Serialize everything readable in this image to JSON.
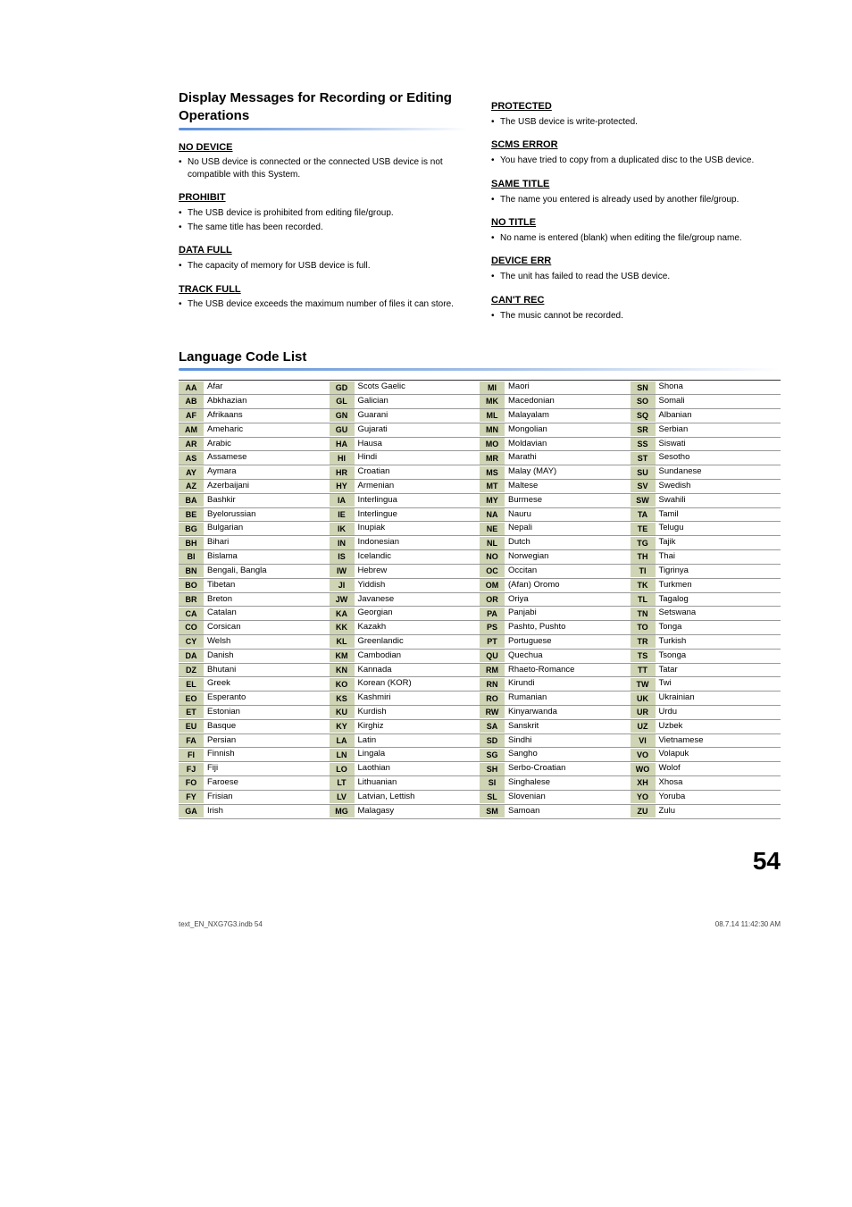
{
  "heading_left": "Display Messages for Recording or Editing Operations",
  "left_sections": [
    {
      "title": "NO DEVICE",
      "items": [
        "No USB device is connected or the connected USB device is not compatible with this System."
      ]
    },
    {
      "title": "PROHIBIT",
      "items": [
        "The USB device is prohibited from editing file/group.",
        "The same title has been recorded."
      ]
    },
    {
      "title": "DATA FULL",
      "items": [
        "The capacity of memory for USB device is full."
      ]
    },
    {
      "title": "TRACK FULL",
      "items": [
        "The USB device exceeds the maximum number of files it can store."
      ]
    }
  ],
  "right_sections": [
    {
      "title": "PROTECTED",
      "items": [
        "The USB device is write-protected."
      ]
    },
    {
      "title": "SCMS ERROR",
      "items": [
        "You have tried to copy from a duplicated disc to the USB device."
      ]
    },
    {
      "title": "SAME TITLE",
      "items": [
        "The name you entered is already used by another file/group."
      ]
    },
    {
      "title": "NO TITLE",
      "items": [
        "No name is entered (blank) when editing the file/group name."
      ]
    },
    {
      "title": "DEVICE ERR",
      "items": [
        "The unit has failed to read the USB device."
      ]
    },
    {
      "title": "CAN'T REC",
      "items": [
        "The music cannot be recorded."
      ]
    }
  ],
  "lang_heading": "Language Code List",
  "lang_header_bg": "#cfd4b4",
  "lang_border": "#999999",
  "underline_gradient_from": "#5a8fd8",
  "lang_columns": [
    [
      [
        "AA",
        "Afar"
      ],
      [
        "AB",
        "Abkhazian"
      ],
      [
        "AF",
        "Afrikaans"
      ],
      [
        "AM",
        "Ameharic"
      ],
      [
        "AR",
        "Arabic"
      ],
      [
        "AS",
        "Assamese"
      ],
      [
        "AY",
        "Aymara"
      ],
      [
        "AZ",
        "Azerbaijani"
      ],
      [
        "BA",
        "Bashkir"
      ],
      [
        "BE",
        "Byelorussian"
      ],
      [
        "BG",
        "Bulgarian"
      ],
      [
        "BH",
        "Bihari"
      ],
      [
        "BI",
        "Bislama"
      ],
      [
        "BN",
        "Bengali, Bangla"
      ],
      [
        "BO",
        "Tibetan"
      ],
      [
        "BR",
        "Breton"
      ],
      [
        "CA",
        "Catalan"
      ],
      [
        "CO",
        "Corsican"
      ],
      [
        "CY",
        "Welsh"
      ],
      [
        "DA",
        "Danish"
      ],
      [
        "DZ",
        "Bhutani"
      ],
      [
        "EL",
        "Greek"
      ],
      [
        "EO",
        "Esperanto"
      ],
      [
        "ET",
        "Estonian"
      ],
      [
        "EU",
        "Basque"
      ],
      [
        "FA",
        "Persian"
      ],
      [
        "FI",
        "Finnish"
      ],
      [
        "FJ",
        "Fiji"
      ],
      [
        "FO",
        "Faroese"
      ],
      [
        "FY",
        "Frisian"
      ],
      [
        "GA",
        "Irish"
      ]
    ],
    [
      [
        "GD",
        "Scots Gaelic"
      ],
      [
        "GL",
        "Galician"
      ],
      [
        "GN",
        "Guarani"
      ],
      [
        "GU",
        "Gujarati"
      ],
      [
        "HA",
        "Hausa"
      ],
      [
        "HI",
        "Hindi"
      ],
      [
        "HR",
        "Croatian"
      ],
      [
        "HY",
        "Armenian"
      ],
      [
        "IA",
        "Interlingua"
      ],
      [
        "IE",
        "Interlingue"
      ],
      [
        "IK",
        "Inupiak"
      ],
      [
        "IN",
        "Indonesian"
      ],
      [
        "IS",
        "Icelandic"
      ],
      [
        "IW",
        "Hebrew"
      ],
      [
        "JI",
        "Yiddish"
      ],
      [
        "JW",
        "Javanese"
      ],
      [
        "KA",
        "Georgian"
      ],
      [
        "KK",
        "Kazakh"
      ],
      [
        "KL",
        "Greenlandic"
      ],
      [
        "KM",
        "Cambodian"
      ],
      [
        "KN",
        "Kannada"
      ],
      [
        "KO",
        "Korean (KOR)"
      ],
      [
        "KS",
        "Kashmiri"
      ],
      [
        "KU",
        "Kurdish"
      ],
      [
        "KY",
        "Kirghiz"
      ],
      [
        "LA",
        "Latin"
      ],
      [
        "LN",
        "Lingala"
      ],
      [
        "LO",
        "Laothian"
      ],
      [
        "LT",
        "Lithuanian"
      ],
      [
        "LV",
        "Latvian, Lettish"
      ],
      [
        "MG",
        "Malagasy"
      ]
    ],
    [
      [
        "MI",
        "Maori"
      ],
      [
        "MK",
        "Macedonian"
      ],
      [
        "ML",
        "Malayalam"
      ],
      [
        "MN",
        "Mongolian"
      ],
      [
        "MO",
        "Moldavian"
      ],
      [
        "MR",
        "Marathi"
      ],
      [
        "MS",
        "Malay (MAY)"
      ],
      [
        "MT",
        "Maltese"
      ],
      [
        "MY",
        "Burmese"
      ],
      [
        "NA",
        "Nauru"
      ],
      [
        "NE",
        "Nepali"
      ],
      [
        "NL",
        "Dutch"
      ],
      [
        "NO",
        "Norwegian"
      ],
      [
        "OC",
        "Occitan"
      ],
      [
        "OM",
        "(Afan) Oromo"
      ],
      [
        "OR",
        "Oriya"
      ],
      [
        "PA",
        "Panjabi"
      ],
      [
        "PS",
        "Pashto, Pushto"
      ],
      [
        "PT",
        "Portuguese"
      ],
      [
        "QU",
        "Quechua"
      ],
      [
        "RM",
        "Rhaeto-Romance"
      ],
      [
        "RN",
        "Kirundi"
      ],
      [
        "RO",
        "Rumanian"
      ],
      [
        "RW",
        "Kinyarwanda"
      ],
      [
        "SA",
        "Sanskrit"
      ],
      [
        "SD",
        "Sindhi"
      ],
      [
        "SG",
        "Sangho"
      ],
      [
        "SH",
        "Serbo-Croatian"
      ],
      [
        "SI",
        "Singhalese"
      ],
      [
        "SL",
        "Slovenian"
      ],
      [
        "SM",
        "Samoan"
      ]
    ],
    [
      [
        "SN",
        "Shona"
      ],
      [
        "SO",
        "Somali"
      ],
      [
        "SQ",
        "Albanian"
      ],
      [
        "SR",
        "Serbian"
      ],
      [
        "SS",
        "Siswati"
      ],
      [
        "ST",
        "Sesotho"
      ],
      [
        "SU",
        "Sundanese"
      ],
      [
        "SV",
        "Swedish"
      ],
      [
        "SW",
        "Swahili"
      ],
      [
        "TA",
        "Tamil"
      ],
      [
        "TE",
        "Telugu"
      ],
      [
        "TG",
        "Tajik"
      ],
      [
        "TH",
        "Thai"
      ],
      [
        "TI",
        "Tigrinya"
      ],
      [
        "TK",
        "Turkmen"
      ],
      [
        "TL",
        "Tagalog"
      ],
      [
        "TN",
        "Setswana"
      ],
      [
        "TO",
        "Tonga"
      ],
      [
        "TR",
        "Turkish"
      ],
      [
        "TS",
        "Tsonga"
      ],
      [
        "TT",
        "Tatar"
      ],
      [
        "TW",
        "Twi"
      ],
      [
        "UK",
        "Ukrainian"
      ],
      [
        "UR",
        "Urdu"
      ],
      [
        "UZ",
        "Uzbek"
      ],
      [
        "VI",
        "Vietnamese"
      ],
      [
        "VO",
        "Volapuk"
      ],
      [
        "WO",
        "Wolof"
      ],
      [
        "XH",
        "Xhosa"
      ],
      [
        "YO",
        "Yoruba"
      ],
      [
        "ZU",
        "Zulu"
      ]
    ]
  ],
  "page_number": "54",
  "footer_left": "text_EN_NXG7G3.indb   54",
  "footer_right": "08.7.14   11:42:30 AM"
}
